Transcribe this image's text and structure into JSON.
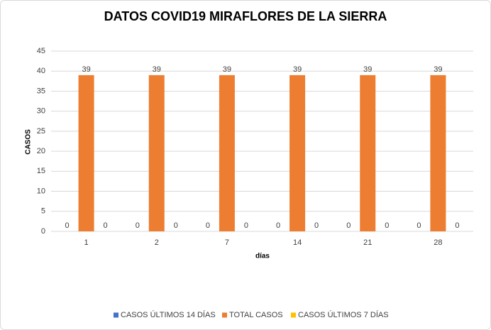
{
  "chart_data": {
    "type": "bar",
    "title": "DATOS COVID19 MIRAFLORES DE LA SIERRA",
    "x_label": "días",
    "y_label": "CASOS",
    "categories": [
      "1",
      "2",
      "7",
      "14",
      "21",
      "28"
    ],
    "series": [
      {
        "name": "CASOS ÚLTIMOS 14 DÍAS",
        "color": "#4472c4",
        "values": [
          0,
          0,
          0,
          0,
          0,
          0
        ]
      },
      {
        "name": "TOTAL CASOS",
        "color": "#ed7d31",
        "values": [
          39,
          39,
          39,
          39,
          39,
          39
        ]
      },
      {
        "name": "CASOS ÚLTIMOS 7 DÍAS",
        "color": "#ffc000",
        "values": [
          0,
          0,
          0,
          0,
          0,
          0
        ]
      }
    ],
    "ylim": [
      0,
      45
    ],
    "yticks": [
      0,
      5,
      10,
      15,
      20,
      25,
      30,
      35,
      40,
      45
    ],
    "grid": true,
    "legend": "bottom"
  }
}
